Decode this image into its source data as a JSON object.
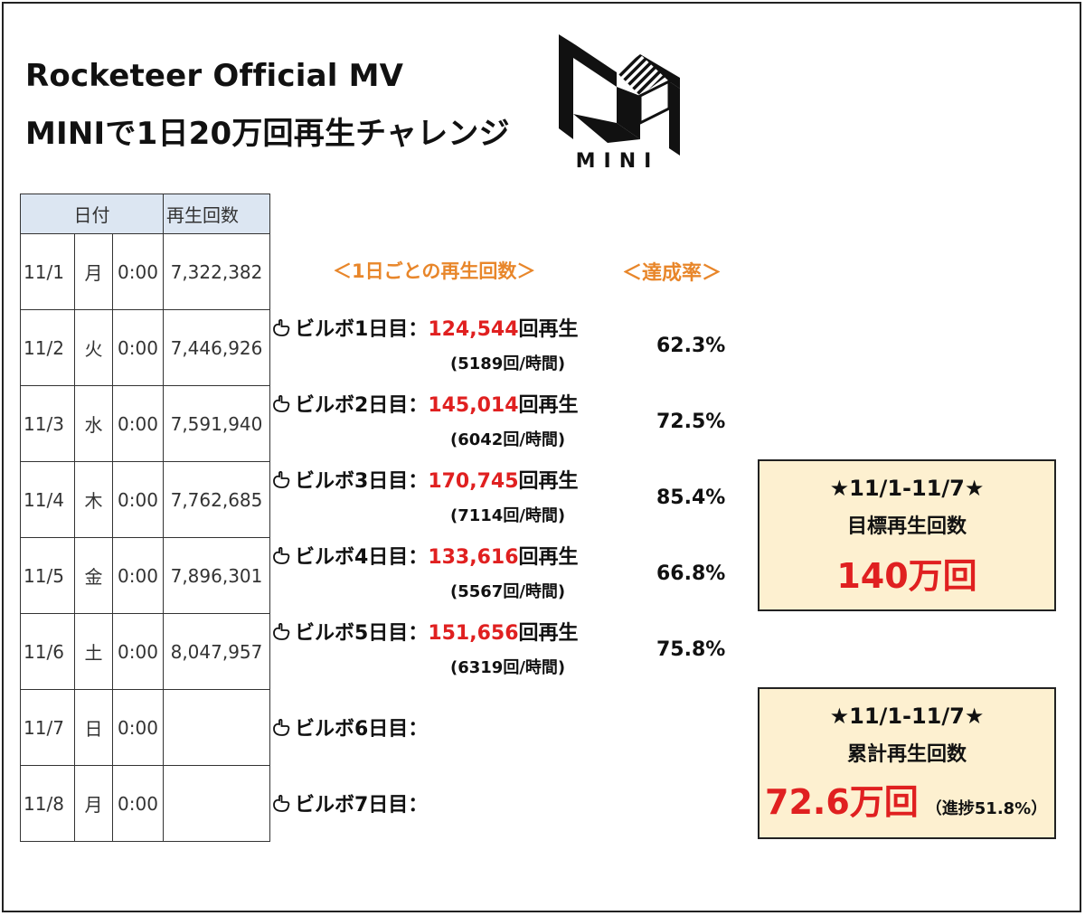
{
  "title": {
    "line1": "Rocketeer Official MV",
    "line2": "MINIで1日20万回再生チャレンジ"
  },
  "logo": {
    "text": "MINI"
  },
  "table": {
    "headers": [
      "日付",
      "再生回数"
    ],
    "rows": [
      {
        "date": "11/1",
        "dow": "月",
        "time": "0:00",
        "count": "7,322,382"
      },
      {
        "date": "11/2",
        "dow": "火",
        "time": "0:00",
        "count": "7,446,926"
      },
      {
        "date": "11/3",
        "dow": "水",
        "time": "0:00",
        "count": "7,591,940"
      },
      {
        "date": "11/4",
        "dow": "木",
        "time": "0:00",
        "count": "7,762,685"
      },
      {
        "date": "11/5",
        "dow": "金",
        "time": "0:00",
        "count": "7,896,301"
      },
      {
        "date": "11/6",
        "dow": "土",
        "time": "0:00",
        "count": "8,047,957"
      },
      {
        "date": "11/7",
        "dow": "日",
        "time": "0:00",
        "count": ""
      },
      {
        "date": "11/8",
        "dow": "月",
        "time": "0:00",
        "count": ""
      }
    ]
  },
  "daily_header": "＜1日ごとの再生回数＞",
  "rate_header": "＜達成率＞",
  "days": [
    {
      "label": "ビルボ1日目：",
      "plays": "124,544",
      "suffix": "回再生",
      "per_hour": "(5189回/時間)",
      "rate": "62.3%"
    },
    {
      "label": "ビルボ2日目：",
      "plays": "145,014",
      "suffix": "回再生",
      "per_hour": "(6042回/時間)",
      "rate": "72.5%"
    },
    {
      "label": "ビルボ3日目：",
      "plays": "170,745",
      "suffix": "回再生",
      "per_hour": "(7114回/時間)",
      "rate": "85.4%"
    },
    {
      "label": "ビルボ4日目：",
      "plays": "133,616",
      "suffix": "回再生",
      "per_hour": "(5567回/時間)",
      "rate": "66.8%"
    },
    {
      "label": "ビルボ5日目：",
      "plays": "151,656",
      "suffix": "回再生",
      "per_hour": "(6319回/時間)",
      "rate": "75.8%"
    },
    {
      "label": "ビルボ6日目：",
      "plays": "",
      "suffix": "",
      "per_hour": "",
      "rate": ""
    },
    {
      "label": "ビルボ7日目：",
      "plays": "",
      "suffix": "",
      "per_hour": "",
      "rate": ""
    }
  ],
  "goal_box": {
    "range": "★11/1-11/7★",
    "label": "目標再生回数",
    "value": "140万回"
  },
  "total_box": {
    "range": "★11/1-11/7★",
    "label": "累計再生回数",
    "value": "72.6万回",
    "note": "（進捗51.8%）"
  },
  "colors": {
    "accent_red": "#e02020",
    "header_orange": "#e8862a",
    "table_header_bg": "#dce6f2",
    "box_bg": "#fdf0d0"
  }
}
